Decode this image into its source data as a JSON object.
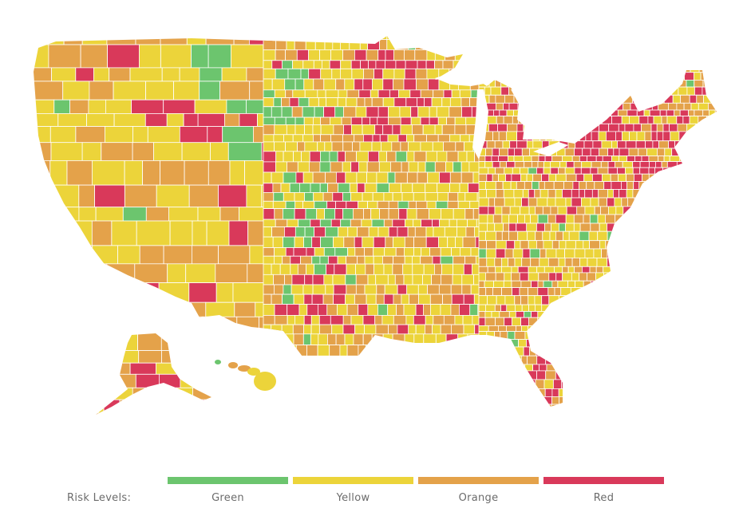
{
  "map": {
    "region": "United States counties",
    "categories": [
      "Green",
      "Yellow",
      "Orange",
      "Red"
    ],
    "colors": {
      "Green": "#6cc56e",
      "Yellow": "#ecd43a",
      "Orange": "#e4a24a",
      "Red": "#d9395a",
      "NoData": "#c8c8c8",
      "border": "#ffffff"
    }
  },
  "legend": {
    "title": "Risk Levels:",
    "items": [
      {
        "label": "Green",
        "color": "#6cc56e"
      },
      {
        "label": "Yellow",
        "color": "#ecd43a"
      },
      {
        "label": "Orange",
        "color": "#e4a24a"
      },
      {
        "label": "Red",
        "color": "#d9395a"
      }
    ]
  }
}
